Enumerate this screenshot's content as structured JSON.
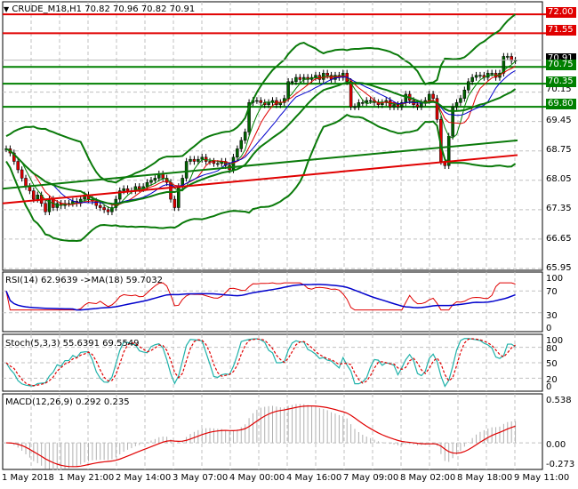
{
  "header": {
    "symbol_line": "CRUDE_M18,H1  70.82 70.96 70.82 70.91",
    "dropdown_icon": "triangle-down-icon"
  },
  "colors": {
    "bull_candle": "#006400",
    "bear_candle": "#e00000",
    "support_line": "#008000",
    "resistance_line": "#e00000",
    "bollinger": "#0a7a0a",
    "ma200": "#e00000",
    "ma_fast": "#008000",
    "ma_mid": "#e00000",
    "ma_slow": "#0000cc",
    "rsi": "#e00000",
    "rsi_ma": "#0000cc",
    "stoch_main": "#20b2aa",
    "stoch_signal": "#e00000",
    "macd_signal": "#e00000",
    "macd_hist": "#b0b0b0",
    "grid": "#c0c0c0",
    "price_label_bg": "#000000"
  },
  "price_axis": {
    "ticks": [
      "70.15",
      "69.45",
      "68.75",
      "68.05",
      "67.35",
      "66.65",
      "65.95"
    ],
    "current_price": "70.91"
  },
  "horizontal_levels": [
    {
      "price": "72.00",
      "type": "resistance",
      "color": "#e00000"
    },
    {
      "price": "71.55",
      "type": "resistance",
      "color": "#e00000"
    },
    {
      "price": "70.75",
      "type": "support",
      "color": "#008000"
    },
    {
      "price": "70.35",
      "type": "support",
      "color": "#008000"
    },
    {
      "price": "69.80",
      "type": "support",
      "color": "#008000"
    }
  ],
  "rsi_pane": {
    "title": "RSI(14) 62.9639  ->MA(18) 59.7032",
    "ticks": [
      "100",
      "70",
      "30",
      "0"
    ]
  },
  "stoch_pane": {
    "title": "Stoch(5,3,3) 55.6391 69.5549",
    "ticks": [
      "100",
      "80",
      "50",
      "20",
      "0"
    ]
  },
  "macd_pane": {
    "title": "MACD(12,26,9) 0.292 0.235",
    "ticks": [
      "0.538",
      "0.00",
      "-0.273"
    ]
  },
  "time_axis": {
    "ticks": [
      "1 May 2018",
      "1 May 21:00",
      "2 May 14:00",
      "3 May 07:00",
      "4 May 00:00",
      "4 May 16:00",
      "7 May 09:00",
      "8 May 02:00",
      "8 May 18:00",
      "9 May 11:00"
    ]
  },
  "chart_data": [
    {
      "type": "candlestick",
      "title": "CRUDE_M18,H1",
      "ohlc_last": {
        "open": 70.82,
        "high": 70.96,
        "low": 70.82,
        "close": 70.91
      },
      "ylim": [
        65.95,
        72.3
      ],
      "yticks": [
        70.15,
        69.45,
        68.75,
        68.05,
        67.35,
        66.65,
        65.95
      ],
      "x_labels": [
        "1 May 2018",
        "1 May 21:00",
        "2 May 14:00",
        "3 May 07:00",
        "4 May 00:00",
        "4 May 16:00",
        "7 May 09:00",
        "8 May 02:00",
        "8 May 18:00",
        "9 May 11:00"
      ],
      "close_path": [
        68.8,
        68.7,
        68.5,
        68.3,
        68.1,
        67.9,
        67.8,
        67.6,
        67.7,
        67.5,
        67.3,
        67.6,
        67.4,
        67.5,
        67.45,
        67.5,
        67.5,
        67.55,
        67.5,
        67.6,
        67.7,
        67.6,
        67.55,
        67.45,
        67.4,
        67.35,
        67.3,
        67.4,
        67.6,
        67.8,
        67.85,
        67.8,
        67.8,
        67.9,
        67.85,
        67.9,
        68.0,
        68.05,
        68.1,
        68.2,
        68.1,
        68.0,
        67.6,
        67.4,
        67.9,
        68.1,
        68.5,
        68.55,
        68.5,
        68.55,
        68.6,
        68.5,
        68.5,
        68.45,
        68.45,
        68.5,
        68.4,
        68.3,
        68.6,
        68.8,
        69.0,
        69.2,
        69.9,
        69.95,
        69.95,
        69.9,
        69.85,
        69.9,
        69.95,
        69.85,
        69.9,
        70.0,
        70.4,
        70.4,
        70.5,
        70.45,
        70.5,
        70.45,
        70.5,
        70.55,
        70.45,
        70.6,
        70.55,
        70.45,
        70.55,
        70.5,
        70.6,
        70.4,
        69.8,
        69.8,
        69.9,
        69.9,
        69.95,
        69.95,
        69.9,
        69.85,
        69.9,
        69.95,
        69.8,
        69.85,
        69.8,
        69.9,
        70.1,
        69.95,
        69.85,
        69.8,
        69.9,
        69.95,
        70.1,
        70.0,
        69.5,
        68.5,
        68.4,
        69.1,
        69.8,
        69.9,
        70.0,
        70.2,
        70.4,
        70.5,
        70.55,
        70.55,
        70.5,
        70.6,
        70.6,
        70.5,
        70.6,
        71.0,
        71.0,
        70.9,
        70.91
      ],
      "horizontal_levels": [
        72.0,
        71.55,
        70.75,
        70.35,
        69.8
      ],
      "ma200": {
        "start": 67.5,
        "end": 68.65
      },
      "ma_long_green": {
        "start": 67.85,
        "end": 69.0
      }
    },
    {
      "type": "line",
      "title": "RSI(14)",
      "ylim": [
        0,
        100
      ],
      "yticks": [
        100,
        70,
        30,
        0
      ],
      "series": [
        {
          "name": "RSI(14)",
          "last": 62.9639
        },
        {
          "name": "MA(18)",
          "last": 59.7032
        }
      ]
    },
    {
      "type": "line",
      "title": "Stoch(5,3,3)",
      "ylim": [
        0,
        100
      ],
      "yticks": [
        100,
        80,
        50,
        20,
        0
      ],
      "series": [
        {
          "name": "%K",
          "last": 55.6391
        },
        {
          "name": "%D",
          "last": 69.5549
        }
      ]
    },
    {
      "type": "bar+line",
      "title": "MACD(12,26,9)",
      "ylim": [
        -0.273,
        0.538
      ],
      "yticks": [
        0.538,
        0.0,
        -0.273
      ],
      "series": [
        {
          "name": "MACD histogram",
          "last": 0.292
        },
        {
          "name": "Signal",
          "last": 0.235
        }
      ]
    }
  ]
}
